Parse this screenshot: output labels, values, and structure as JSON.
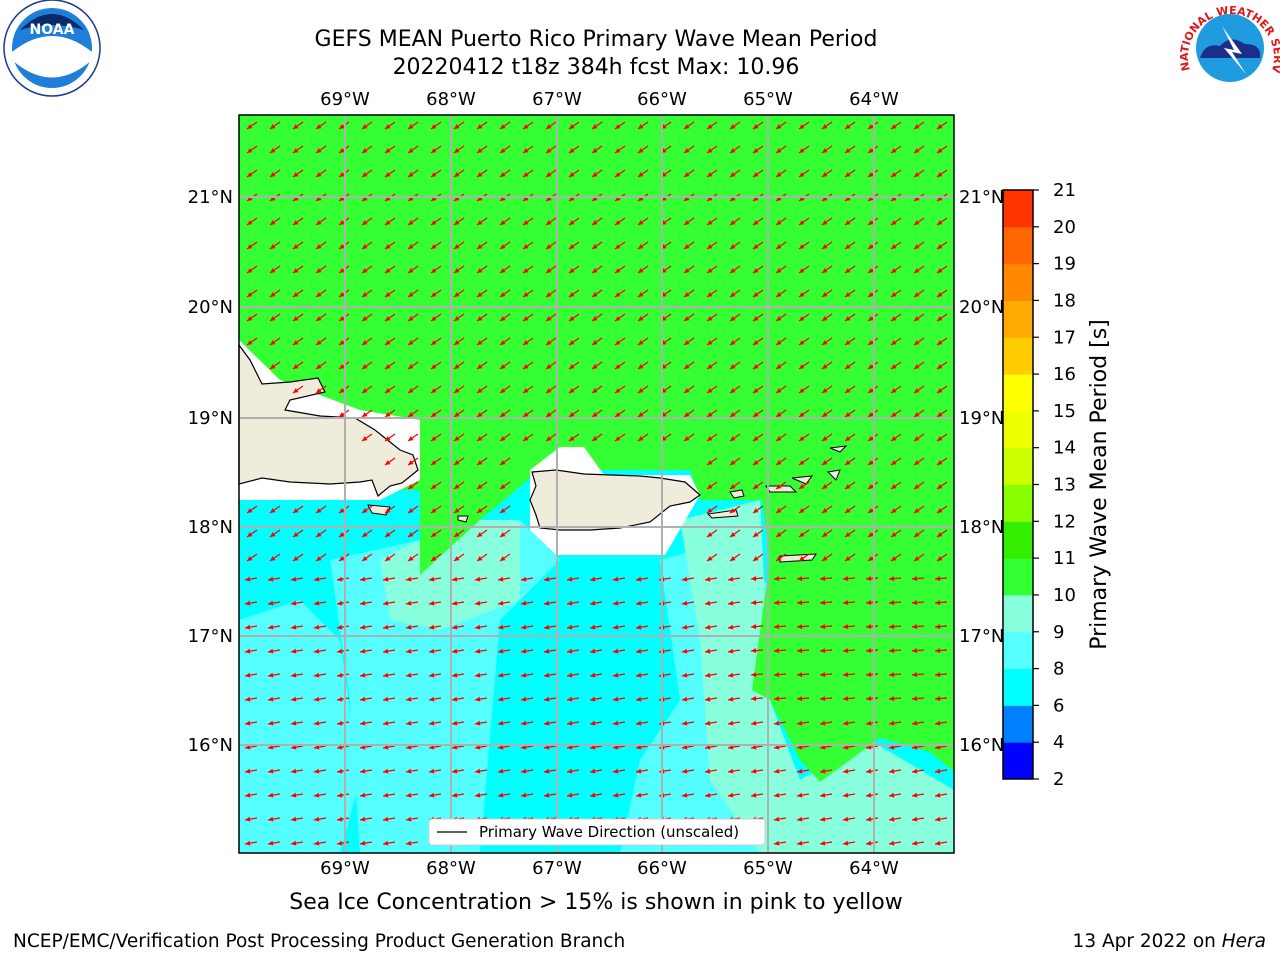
{
  "title": {
    "line1": "GEFS MEAN Puerto Rico Primary Wave Mean Period",
    "line2": "20220412 t18z 384h fcst   Max: 10.96"
  },
  "map": {
    "lon_labels": [
      "69°W",
      "68°W",
      "67°W",
      "66°W",
      "65°W",
      "64°W"
    ],
    "lat_labels": [
      "21°N",
      "20°N",
      "19°N",
      "18°N",
      "17°N",
      "16°N"
    ],
    "legend_label": "Primary Wave Direction (unscaled)",
    "arrow_color": "#ff0000",
    "land_color": "#efecdc",
    "field": [
      {
        "period_range": "10-11",
        "color": "#33ff33",
        "region": "north and east Caribbean Sea"
      },
      {
        "period_range": "9-10",
        "color": "#88ffdd",
        "region": "near coasts and south-east"
      },
      {
        "period_range": "8-9",
        "color": "#55ffff",
        "region": "south-central"
      },
      {
        "period_range": "6-8",
        "color": "#00ffff",
        "region": "south-west"
      }
    ]
  },
  "colorbar": {
    "label": "Primary Wave Mean Period [s]",
    "ticks": [
      "2",
      "4",
      "6",
      "8",
      "9",
      "10",
      "11",
      "12",
      "13",
      "14",
      "15",
      "16",
      "17",
      "18",
      "19",
      "20",
      "21"
    ],
    "colors": [
      "#0000ff",
      "#0080ff",
      "#00ffff",
      "#55ffff",
      "#88ffdd",
      "#33ff33",
      "#33ee00",
      "#88ff00",
      "#ccff00",
      "#eeff00",
      "#ffff00",
      "#ffcc00",
      "#ffaa00",
      "#ff8800",
      "#ff6600",
      "#ff3300",
      "#ff0000"
    ]
  },
  "note": "Sea Ice Concentration > 15% is shown in pink to yellow",
  "footer": {
    "left": "NCEP/EMC/Verification Post Processing Product Generation Branch",
    "right_prefix": "13 Apr 2022 on ",
    "right_host": "Hera"
  },
  "logos": {
    "noaa": "NOAA",
    "nws": "NATIONAL WEATHER SERVICE"
  }
}
